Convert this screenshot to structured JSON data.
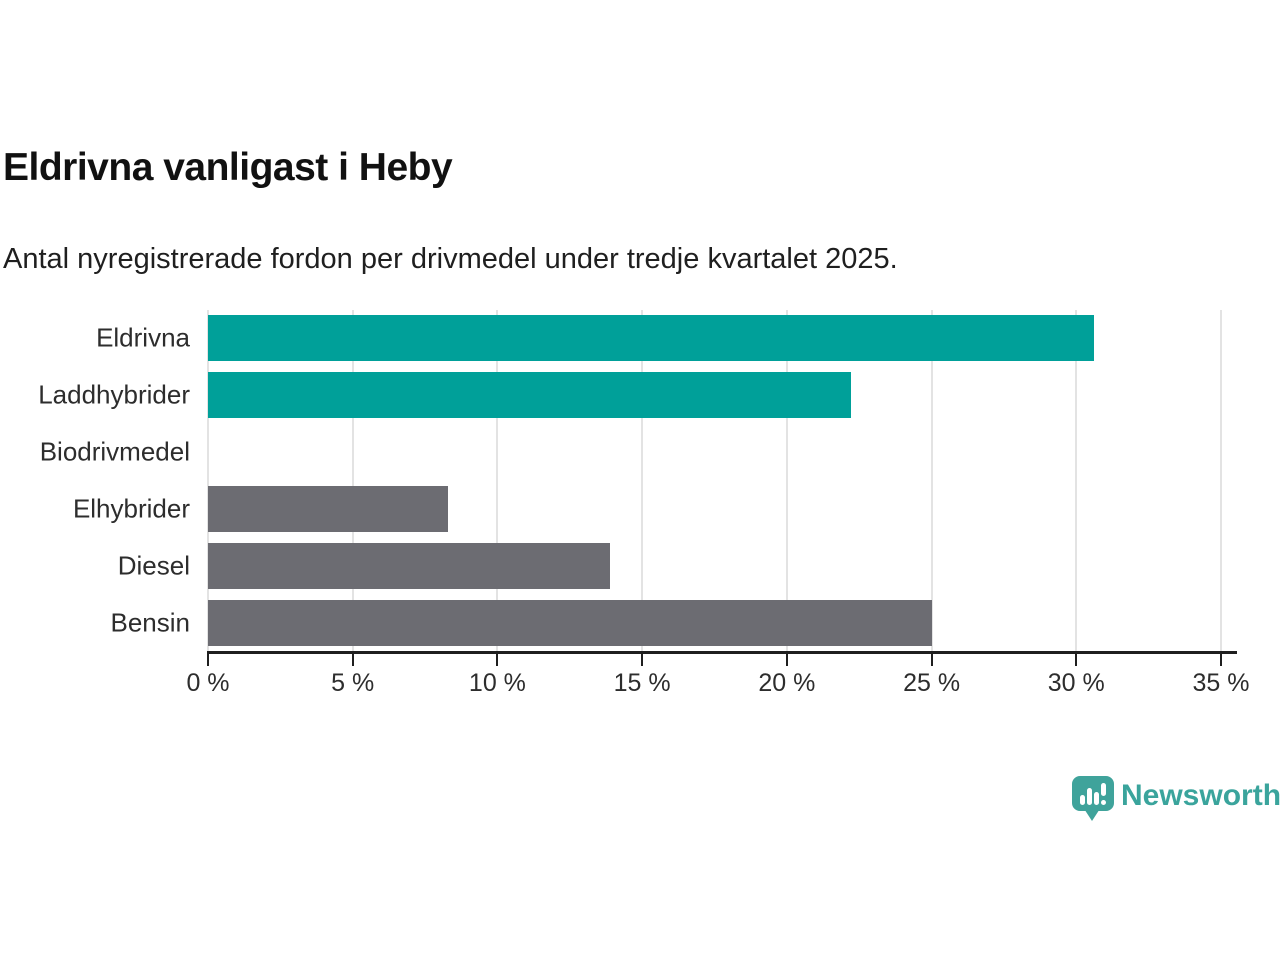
{
  "header": {
    "title": "Eldrivna vanligast i Heby",
    "subtitle": "Antal nyregistrerade fordon per drivmedel under tredje kvartalet 2025."
  },
  "chart_data": {
    "type": "bar",
    "orientation": "horizontal",
    "title": "Eldrivna vanligast i Heby",
    "subtitle": "Antal nyregistrerade fordon per drivmedel under tredje kvartalet 2025.",
    "categories": [
      "Eldrivna",
      "Laddhybrider",
      "Biodrivmedel",
      "Elhybrider",
      "Diesel",
      "Bensin"
    ],
    "values": [
      30.6,
      22.2,
      0,
      8.3,
      13.9,
      25.0
    ],
    "unit": "%",
    "xlim": [
      0,
      35
    ],
    "x_ticks": [
      0,
      5,
      10,
      15,
      20,
      25,
      30,
      35
    ],
    "x_tick_labels": [
      "0 %",
      "5 %",
      "10 %",
      "15 %",
      "20 %",
      "25 %",
      "30 %",
      "35 %"
    ],
    "grid": true,
    "legend": false,
    "bar_colors": [
      "#00a099",
      "#00a099",
      "#6c6c72",
      "#6c6c72",
      "#6c6c72",
      "#6c6c72"
    ],
    "highlight_color": "#00a099",
    "default_color": "#6c6c72",
    "gridline_color": "#e3e3e3",
    "axis_color": "#1f1f1f"
  },
  "footer": {
    "brand": "Newsworthy",
    "brand_color": "#3aa49c",
    "icon": "bar-chart-speech-bubble-icon",
    "icon_color": "#3fa39b"
  }
}
